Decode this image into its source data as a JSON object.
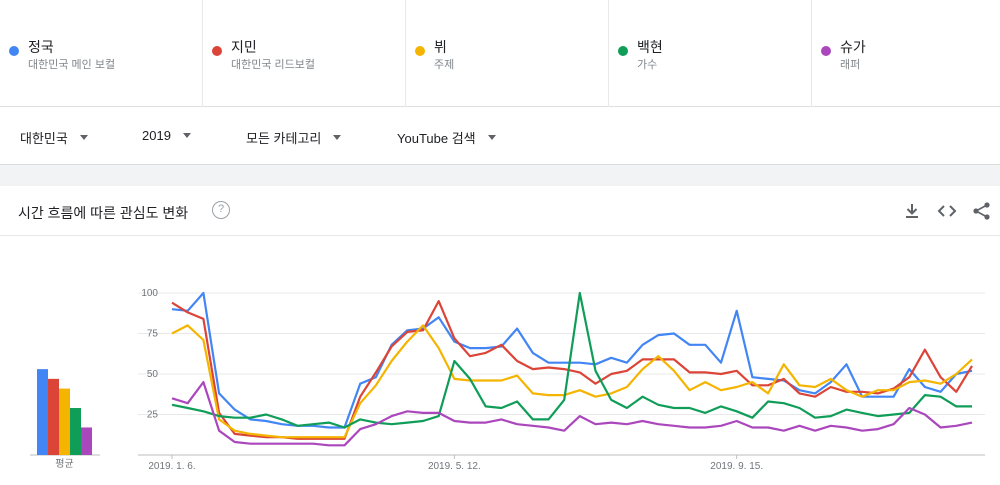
{
  "terms": [
    {
      "name": "정국",
      "category": "대한민국 메인 보컬",
      "color": "#4285f4"
    },
    {
      "name": "지민",
      "category": "대한민국 리드보컬",
      "color": "#db4437"
    },
    {
      "name": "뷔",
      "category": "주제",
      "color": "#f4b400"
    },
    {
      "name": "백현",
      "category": "가수",
      "color": "#0f9d58"
    },
    {
      "name": "슈가",
      "category": "래퍼",
      "color": "#ab47bc"
    }
  ],
  "filters": {
    "region": "대한민국",
    "year": "2019",
    "category": "모든 카테고리",
    "source": "YouTube 검색"
  },
  "card": {
    "title": "시간 흐름에 따른 관심도 변화",
    "help_symbol": "?"
  },
  "icons": {
    "download": "download-icon",
    "embed": "embed-icon",
    "share": "share-icon",
    "help": "help-icon"
  },
  "chart_data": {
    "type": "line",
    "x_labels": [
      "2019. 1. 6.",
      "2019. 5. 12.",
      "2019. 9. 15."
    ],
    "x_label_indices": [
      0,
      18,
      36
    ],
    "y_ticks": [
      25,
      50,
      75,
      100
    ],
    "ylim": [
      0,
      100
    ],
    "grid": true,
    "average_label": "평균",
    "averages": [
      {
        "name": "정국",
        "value": 53
      },
      {
        "name": "지민",
        "value": 47
      },
      {
        "name": "뷔",
        "value": 41
      },
      {
        "name": "백현",
        "value": 29
      },
      {
        "name": "슈가",
        "value": 17
      }
    ],
    "series": [
      {
        "name": "정국",
        "color": "#4285f4",
        "values": [
          90,
          89,
          100,
          38,
          28,
          22,
          21,
          19,
          18,
          18,
          17,
          17,
          44,
          48,
          68,
          77,
          78,
          85,
          70,
          66,
          66,
          67,
          78,
          63,
          57,
          57,
          57,
          56,
          60,
          57,
          68,
          74,
          75,
          68,
          68,
          57,
          89,
          48,
          47,
          46,
          40,
          38,
          45,
          56,
          36,
          36,
          36,
          53,
          42,
          39,
          50,
          52
        ]
      },
      {
        "name": "지민",
        "color": "#db4437",
        "values": [
          94,
          88,
          84,
          26,
          13,
          12,
          11,
          11,
          10,
          10,
          10,
          10,
          36,
          51,
          67,
          76,
          77,
          95,
          72,
          61,
          63,
          68,
          58,
          53,
          54,
          53,
          51,
          44,
          50,
          52,
          59,
          59,
          59,
          51,
          51,
          50,
          52,
          43,
          43,
          47,
          38,
          36,
          42,
          39,
          39,
          38,
          41,
          48,
          65,
          48,
          39,
          55
        ]
      },
      {
        "name": "뷔",
        "color": "#f4b400",
        "values": [
          75,
          80,
          71,
          22,
          15,
          13,
          12,
          11,
          11,
          11,
          11,
          11,
          32,
          43,
          58,
          70,
          80,
          66,
          47,
          46,
          46,
          46,
          49,
          38,
          37,
          37,
          40,
          36,
          38,
          42,
          53,
          61,
          52,
          40,
          45,
          40,
          42,
          45,
          38,
          56,
          43,
          42,
          47,
          40,
          36,
          40,
          40,
          45,
          46,
          44,
          50,
          59
        ]
      },
      {
        "name": "백현",
        "color": "#0f9d58",
        "values": [
          31,
          29,
          27,
          24,
          23,
          23,
          25,
          22,
          18,
          19,
          20,
          17,
          22,
          20,
          19,
          20,
          21,
          24,
          58,
          47,
          30,
          29,
          33,
          22,
          22,
          34,
          100,
          52,
          34,
          29,
          36,
          31,
          29,
          29,
          26,
          30,
          27,
          23,
          33,
          32,
          29,
          23,
          24,
          28,
          26,
          24,
          25,
          26,
          37,
          36,
          30,
          30
        ]
      },
      {
        "name": "슈가",
        "color": "#ab47bc",
        "values": [
          35,
          32,
          45,
          15,
          8,
          7,
          7,
          7,
          7,
          7,
          6,
          6,
          16,
          19,
          24,
          27,
          26,
          26,
          21,
          20,
          20,
          22,
          19,
          18,
          17,
          15,
          24,
          19,
          20,
          19,
          21,
          19,
          18,
          17,
          17,
          18,
          21,
          17,
          17,
          15,
          18,
          15,
          18,
          17,
          15,
          16,
          19,
          29,
          25,
          17,
          18,
          20
        ]
      }
    ]
  }
}
